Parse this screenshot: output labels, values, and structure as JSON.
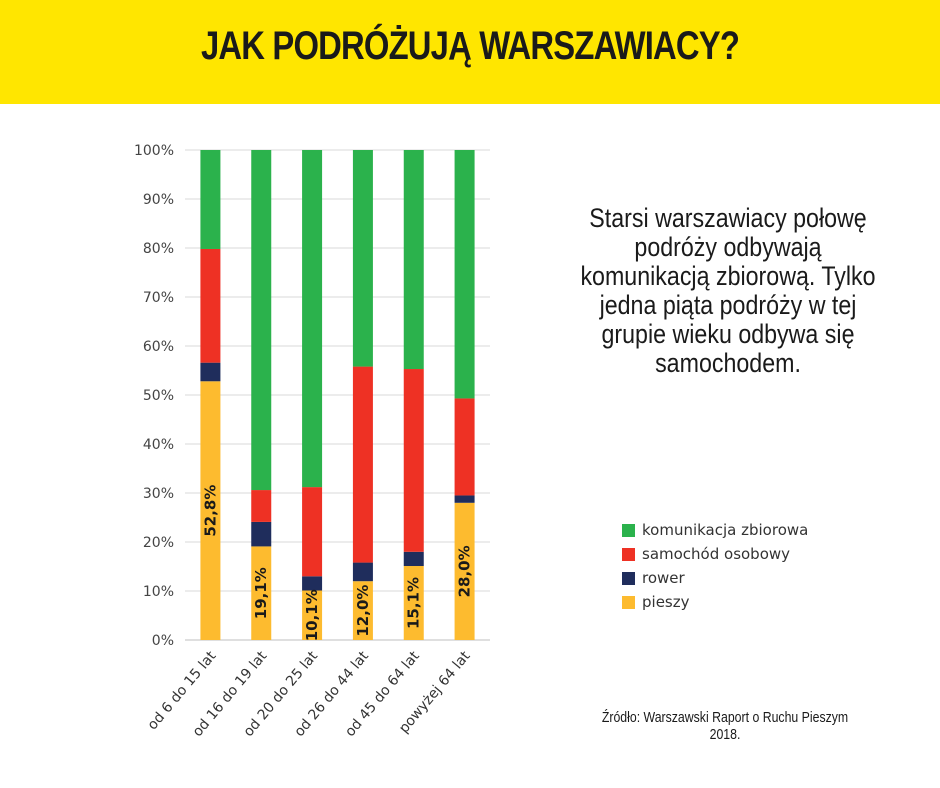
{
  "header": {
    "title": "JAK PODRÓŻUJĄ WARSZAWIACY?",
    "background": "#ffe600"
  },
  "description": "Starsi warszawiacy połowę podróży odbywają komunikacją zbiorową. Tylko jedna piąta podróży w tej grupie wieku odbywa się samochodem.",
  "source": "Źródło: Warszawski Raport o Ruchu Pieszym 2018.",
  "chart_data": {
    "type": "bar",
    "stacked": true,
    "categories": [
      "od 6 do 15 lat",
      "od 16 do 19 lat",
      "od 20 do 25 lat",
      "od 26 do 44 lat",
      "od 45 do 64 lat",
      "powyżej 64 lat"
    ],
    "series": [
      {
        "name": "pieszy",
        "color": "#fdbb2f",
        "values": [
          52.8,
          19.1,
          10.1,
          12.0,
          15.1,
          28.0
        ]
      },
      {
        "name": "rower",
        "color": "#1f2d5c",
        "values": [
          3.8,
          5.0,
          2.9,
          3.8,
          2.9,
          1.5
        ]
      },
      {
        "name": "samochód osobowy",
        "color": "#ee3124",
        "values": [
          23.2,
          6.5,
          18.2,
          40.0,
          37.3,
          19.8
        ]
      },
      {
        "name": "komunikacja zbiorowa",
        "color": "#2bb24c",
        "values": [
          20.2,
          69.4,
          68.8,
          44.2,
          44.7,
          50.7
        ]
      }
    ],
    "data_labels": [
      "52,8%",
      "19,1%",
      "10,1%",
      "12,0%",
      "15,1%",
      "28,0%"
    ],
    "y_ticks": [
      "0%",
      "10%",
      "20%",
      "30%",
      "40%",
      "50%",
      "60%",
      "70%",
      "80%",
      "90%",
      "100%"
    ],
    "ylim": [
      0,
      100
    ],
    "grid": true,
    "legend_order": [
      "komunikacja zbiorowa",
      "samochód osobowy",
      "rower",
      "pieszy"
    ],
    "legend_position": "right"
  }
}
